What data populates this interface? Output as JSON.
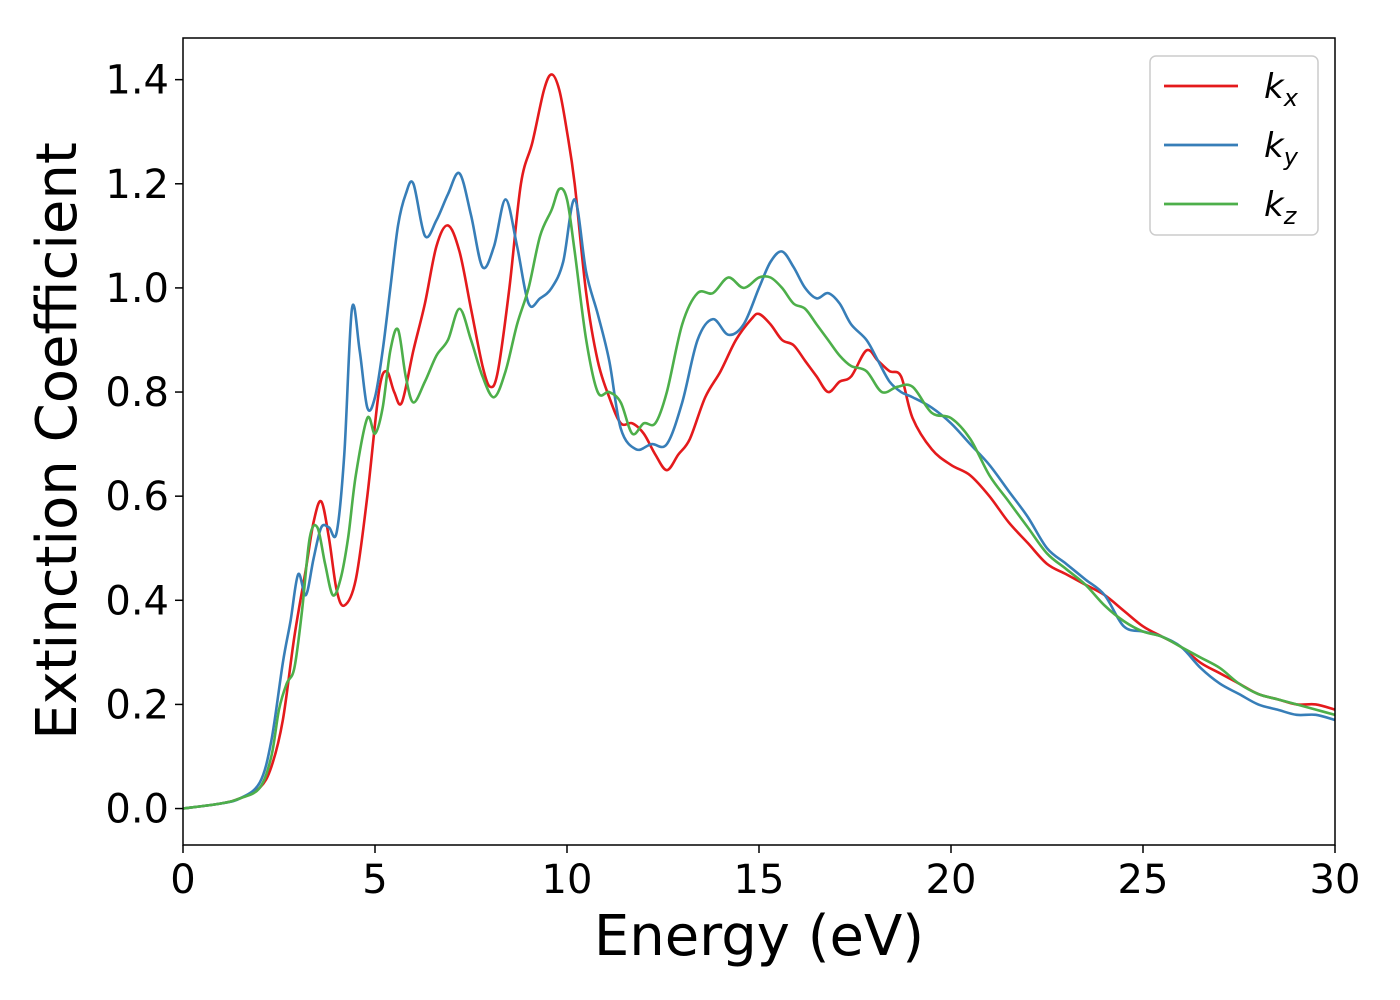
{
  "chart_data": {
    "type": "line",
    "xlabel": "Energy (eV)",
    "ylabel": "Extinction Coefficient",
    "xlim": [
      0,
      30
    ],
    "ylim": [
      -0.07,
      1.48
    ],
    "xticks": [
      0,
      5,
      10,
      15,
      20,
      25,
      30
    ],
    "xtick_labels": [
      "0",
      "5",
      "10",
      "15",
      "20",
      "25",
      "30"
    ],
    "yticks": [
      0.0,
      0.2,
      0.4,
      0.6,
      0.8,
      1.0,
      1.2,
      1.4
    ],
    "ytick_labels": [
      "0.0",
      "0.2",
      "0.4",
      "0.6",
      "0.8",
      "1.0",
      "1.2",
      "1.4"
    ],
    "grid": false,
    "legend_position": "top-right",
    "series": [
      {
        "name": "k",
        "subscript": "x",
        "color": "#e41a1c",
        "x": [
          0,
          1,
          1.5,
          2,
          2.3,
          2.6,
          2.9,
          3.2,
          3.4,
          3.6,
          3.8,
          4.0,
          4.2,
          4.5,
          4.8,
          5.1,
          5.3,
          5.5,
          5.7,
          6.0,
          6.3,
          6.6,
          6.9,
          7.2,
          7.5,
          7.8,
          8.0,
          8.2,
          8.5,
          8.8,
          9.1,
          9.4,
          9.6,
          9.8,
          10.0,
          10.2,
          10.5,
          10.8,
          11.1,
          11.4,
          11.7,
          12.0,
          12.3,
          12.6,
          12.9,
          13.2,
          13.6,
          14.0,
          14.4,
          14.8,
          15.0,
          15.3,
          15.6,
          15.9,
          16.2,
          16.5,
          16.8,
          17.1,
          17.4,
          17.8,
          18.1,
          18.4,
          18.7,
          19.0,
          19.5,
          20.0,
          20.5,
          21.0,
          21.5,
          22.0,
          22.5,
          23.0,
          23.5,
          24.0,
          24.5,
          25.0,
          25.5,
          26.0,
          26.5,
          27.0,
          27.5,
          28.0,
          28.5,
          29.0,
          29.5,
          30.0
        ],
        "y": [
          0.0,
          0.01,
          0.02,
          0.04,
          0.08,
          0.17,
          0.33,
          0.46,
          0.55,
          0.59,
          0.52,
          0.42,
          0.39,
          0.44,
          0.6,
          0.8,
          0.84,
          0.8,
          0.78,
          0.88,
          0.97,
          1.08,
          1.12,
          1.07,
          0.96,
          0.85,
          0.81,
          0.84,
          1.0,
          1.2,
          1.28,
          1.38,
          1.41,
          1.38,
          1.3,
          1.2,
          0.99,
          0.86,
          0.79,
          0.74,
          0.74,
          0.72,
          0.68,
          0.65,
          0.68,
          0.71,
          0.79,
          0.84,
          0.9,
          0.94,
          0.95,
          0.93,
          0.9,
          0.89,
          0.86,
          0.83,
          0.8,
          0.82,
          0.83,
          0.88,
          0.86,
          0.84,
          0.83,
          0.75,
          0.69,
          0.66,
          0.64,
          0.6,
          0.55,
          0.51,
          0.47,
          0.45,
          0.43,
          0.41,
          0.38,
          0.35,
          0.33,
          0.31,
          0.28,
          0.26,
          0.24,
          0.22,
          0.21,
          0.2,
          0.2,
          0.19
        ]
      },
      {
        "name": "k",
        "subscript": "y",
        "color": "#377eb8",
        "x": [
          0,
          1,
          1.5,
          2,
          2.3,
          2.6,
          2.8,
          3.0,
          3.2,
          3.4,
          3.6,
          3.8,
          4.0,
          4.2,
          4.4,
          4.6,
          4.8,
          5.0,
          5.2,
          5.4,
          5.6,
          5.8,
          6.0,
          6.3,
          6.6,
          6.9,
          7.2,
          7.5,
          7.8,
          8.1,
          8.4,
          8.7,
          9.0,
          9.3,
          9.6,
          9.9,
          10.2,
          10.5,
          10.8,
          11.1,
          11.4,
          11.8,
          12.2,
          12.6,
          13.0,
          13.4,
          13.8,
          14.2,
          14.6,
          15.0,
          15.3,
          15.6,
          15.9,
          16.2,
          16.5,
          16.8,
          17.1,
          17.4,
          17.8,
          18.1,
          18.4,
          18.7,
          19.0,
          19.5,
          20.0,
          20.5,
          21.0,
          21.5,
          22.0,
          22.5,
          23.0,
          23.5,
          24.0,
          24.5,
          25.0,
          25.5,
          26.0,
          26.5,
          27.0,
          27.5,
          28.0,
          28.5,
          29.0,
          29.5,
          30.0
        ],
        "y": [
          0.0,
          0.01,
          0.02,
          0.05,
          0.13,
          0.28,
          0.36,
          0.45,
          0.41,
          0.48,
          0.54,
          0.54,
          0.53,
          0.68,
          0.96,
          0.88,
          0.77,
          0.79,
          0.88,
          1.0,
          1.12,
          1.18,
          1.2,
          1.1,
          1.13,
          1.18,
          1.22,
          1.14,
          1.04,
          1.08,
          1.17,
          1.08,
          0.97,
          0.98,
          1.0,
          1.05,
          1.17,
          1.03,
          0.95,
          0.86,
          0.73,
          0.69,
          0.7,
          0.7,
          0.78,
          0.9,
          0.94,
          0.91,
          0.93,
          1.0,
          1.05,
          1.07,
          1.04,
          1.0,
          0.98,
          0.99,
          0.97,
          0.93,
          0.9,
          0.86,
          0.82,
          0.8,
          0.79,
          0.77,
          0.74,
          0.7,
          0.66,
          0.61,
          0.56,
          0.5,
          0.47,
          0.44,
          0.41,
          0.35,
          0.34,
          0.33,
          0.31,
          0.27,
          0.24,
          0.22,
          0.2,
          0.19,
          0.18,
          0.18,
          0.17
        ]
      },
      {
        "name": "k",
        "subscript": "z",
        "color": "#4daf4a",
        "x": [
          0,
          1,
          1.5,
          2,
          2.3,
          2.5,
          2.7,
          2.9,
          3.1,
          3.3,
          3.5,
          3.7,
          3.9,
          4.1,
          4.3,
          4.5,
          4.8,
          5.0,
          5.2,
          5.4,
          5.6,
          5.8,
          6.0,
          6.3,
          6.6,
          6.9,
          7.2,
          7.5,
          7.8,
          8.1,
          8.4,
          8.7,
          9.0,
          9.3,
          9.6,
          9.8,
          10.0,
          10.2,
          10.5,
          10.8,
          11.1,
          11.4,
          11.7,
          12.0,
          12.3,
          12.6,
          13.0,
          13.4,
          13.8,
          14.2,
          14.6,
          15.0,
          15.3,
          15.6,
          15.9,
          16.2,
          16.5,
          16.8,
          17.1,
          17.4,
          17.8,
          18.2,
          18.6,
          19.0,
          19.5,
          20.0,
          20.5,
          21.0,
          21.5,
          22.0,
          22.5,
          23.0,
          23.5,
          24.0,
          24.5,
          25.0,
          25.5,
          26.0,
          26.5,
          27.0,
          27.5,
          28.0,
          28.5,
          29.0,
          29.5,
          30.0
        ],
        "y": [
          0.0,
          0.01,
          0.02,
          0.04,
          0.1,
          0.19,
          0.24,
          0.27,
          0.38,
          0.52,
          0.54,
          0.47,
          0.41,
          0.44,
          0.52,
          0.64,
          0.75,
          0.72,
          0.77,
          0.88,
          0.92,
          0.83,
          0.78,
          0.82,
          0.87,
          0.9,
          0.96,
          0.9,
          0.83,
          0.79,
          0.84,
          0.93,
          1.0,
          1.1,
          1.15,
          1.19,
          1.17,
          1.07,
          0.9,
          0.8,
          0.8,
          0.78,
          0.72,
          0.74,
          0.74,
          0.8,
          0.93,
          0.99,
          0.99,
          1.02,
          1.0,
          1.02,
          1.02,
          1.0,
          0.97,
          0.96,
          0.93,
          0.9,
          0.87,
          0.85,
          0.84,
          0.8,
          0.81,
          0.81,
          0.76,
          0.75,
          0.71,
          0.64,
          0.59,
          0.54,
          0.49,
          0.46,
          0.43,
          0.39,
          0.36,
          0.34,
          0.33,
          0.31,
          0.29,
          0.27,
          0.24,
          0.22,
          0.21,
          0.2,
          0.19,
          0.18
        ]
      }
    ]
  }
}
